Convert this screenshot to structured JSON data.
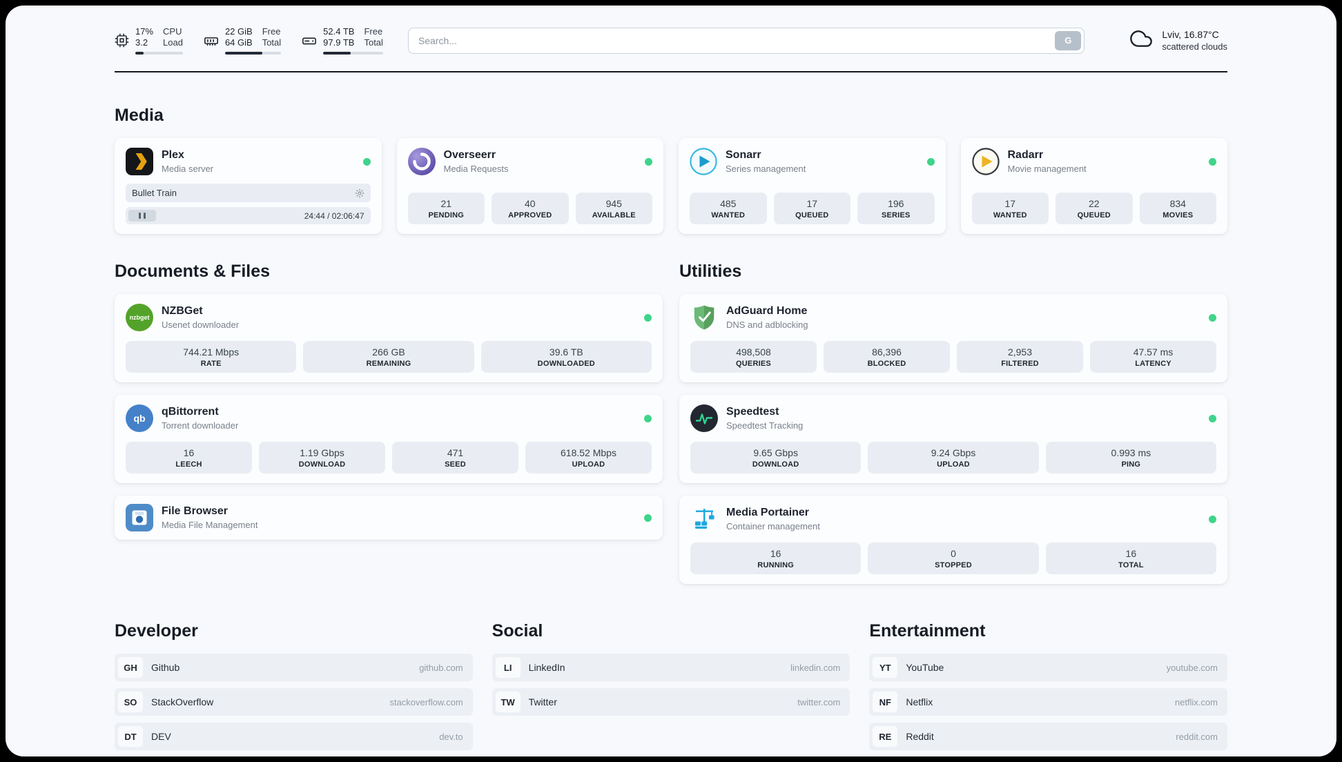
{
  "header": {
    "cpu": {
      "percent": "17%",
      "load": "3.2",
      "label_top": "CPU",
      "label_bottom": "Load",
      "used_percent": 17
    },
    "memory": {
      "free": "22 GiB",
      "total": "64 GiB",
      "label_top": "Free",
      "label_bottom": "Total",
      "used_percent": 66
    },
    "storage": {
      "free": "52.4 TB",
      "total": "97.9 TB",
      "label_top": "Free",
      "label_bottom": "Total",
      "used_percent": 46
    },
    "search": {
      "placeholder": "Search...",
      "button_label": "G"
    },
    "weather": {
      "location": "Lviv, 16.87°C",
      "condition": "scattered clouds"
    }
  },
  "sections": {
    "media": {
      "title": "Media",
      "plex": {
        "name": "Plex",
        "subtitle": "Media server",
        "now_playing": "Bullet Train",
        "time": "24:44 / 02:06:47"
      },
      "overseerr": {
        "name": "Overseerr",
        "subtitle": "Media Requests",
        "stats": [
          {
            "value": "21",
            "label": "PENDING"
          },
          {
            "value": "40",
            "label": "APPROVED"
          },
          {
            "value": "945",
            "label": "AVAILABLE"
          }
        ]
      },
      "sonarr": {
        "name": "Sonarr",
        "subtitle": "Series management",
        "stats": [
          {
            "value": "485",
            "label": "WANTED"
          },
          {
            "value": "17",
            "label": "QUEUED"
          },
          {
            "value": "196",
            "label": "SERIES"
          }
        ]
      },
      "radarr": {
        "name": "Radarr",
        "subtitle": "Movie management",
        "stats": [
          {
            "value": "17",
            "label": "WANTED"
          },
          {
            "value": "22",
            "label": "QUEUED"
          },
          {
            "value": "834",
            "label": "MOVIES"
          }
        ]
      }
    },
    "documents": {
      "title": "Documents & Files",
      "nzbget": {
        "name": "NZBGet",
        "subtitle": "Usenet downloader",
        "icon_text": "nzbget",
        "stats": [
          {
            "value": "744.21 Mbps",
            "label": "RATE"
          },
          {
            "value": "266 GB",
            "label": "REMAINING"
          },
          {
            "value": "39.6 TB",
            "label": "DOWNLOADED"
          }
        ]
      },
      "qbittorrent": {
        "name": "qBittorrent",
        "subtitle": "Torrent downloader",
        "icon_text": "qb",
        "stats": [
          {
            "value": "16",
            "label": "LEECH"
          },
          {
            "value": "1.19 Gbps",
            "label": "DOWNLOAD"
          },
          {
            "value": "471",
            "label": "SEED"
          },
          {
            "value": "618.52 Mbps",
            "label": "UPLOAD"
          }
        ]
      },
      "filebrowser": {
        "name": "File Browser",
        "subtitle": "Media File Management"
      }
    },
    "utilities": {
      "title": "Utilities",
      "adguard": {
        "name": "AdGuard Home",
        "subtitle": "DNS and adblocking",
        "stats": [
          {
            "value": "498,508",
            "label": "QUERIES"
          },
          {
            "value": "86,396",
            "label": "BLOCKED"
          },
          {
            "value": "2,953",
            "label": "FILTERED"
          },
          {
            "value": "47.57 ms",
            "label": "LATENCY"
          }
        ]
      },
      "speedtest": {
        "name": "Speedtest",
        "subtitle": "Speedtest Tracking",
        "stats": [
          {
            "value": "9.65 Gbps",
            "label": "DOWNLOAD"
          },
          {
            "value": "9.24 Gbps",
            "label": "UPLOAD"
          },
          {
            "value": "0.993 ms",
            "label": "PING"
          }
        ]
      },
      "portainer": {
        "name": "Media Portainer",
        "subtitle": "Container management",
        "stats": [
          {
            "value": "16",
            "label": "RUNNING"
          },
          {
            "value": "0",
            "label": "STOPPED"
          },
          {
            "value": "16",
            "label": "TOTAL"
          }
        ]
      }
    },
    "developer": {
      "title": "Developer",
      "links": [
        {
          "abbr": "GH",
          "name": "Github",
          "url": "github.com"
        },
        {
          "abbr": "SO",
          "name": "StackOverflow",
          "url": "stackoverflow.com"
        },
        {
          "abbr": "DT",
          "name": "DEV",
          "url": "dev.to"
        }
      ]
    },
    "social": {
      "title": "Social",
      "links": [
        {
          "abbr": "LI",
          "name": "LinkedIn",
          "url": "linkedin.com"
        },
        {
          "abbr": "TW",
          "name": "Twitter",
          "url": "twitter.com"
        }
      ]
    },
    "entertainment": {
      "title": "Entertainment",
      "links": [
        {
          "abbr": "YT",
          "name": "YouTube",
          "url": "youtube.com"
        },
        {
          "abbr": "NF",
          "name": "Netflix",
          "url": "netflix.com"
        },
        {
          "abbr": "RE",
          "name": "Reddit",
          "url": "reddit.com"
        }
      ]
    }
  },
  "colors": {
    "status_online": "#3ed48b",
    "plex_brand": "#e5a00d",
    "accent_dark": "#12161d"
  }
}
